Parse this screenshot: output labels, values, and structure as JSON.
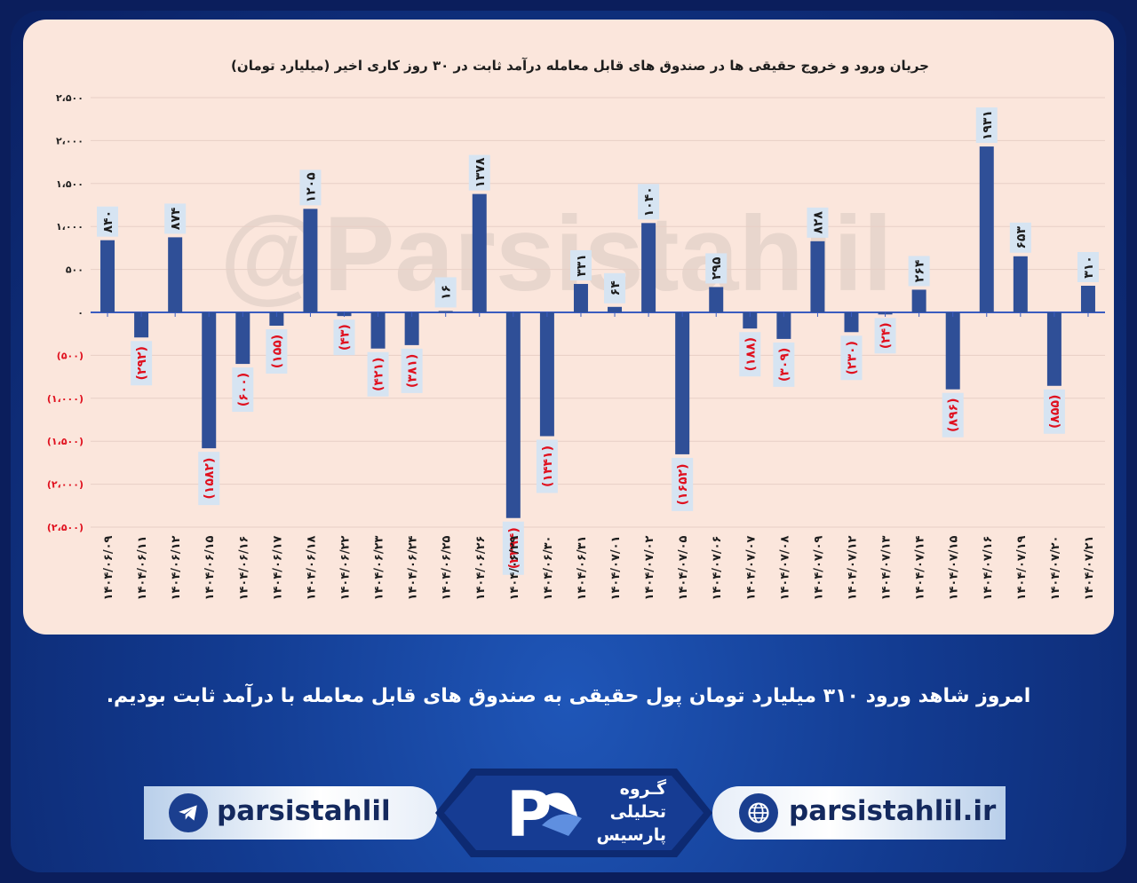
{
  "chart_data": {
    "type": "bar",
    "title": "جریان ورود و خروج حقیقی ها در صندوق های قابل معامله درآمد ثابت در ۳۰ روز کاری اخیر (میلیارد تومان)",
    "watermark": "@Parsistahlil",
    "ylim": [
      -2500,
      2500
    ],
    "y_ticks": [
      {
        "value": 2500,
        "label": "۲،۵۰۰"
      },
      {
        "value": 2000,
        "label": "۲،۰۰۰"
      },
      {
        "value": 1500,
        "label": "۱،۵۰۰"
      },
      {
        "value": 1000,
        "label": "۱،۰۰۰"
      },
      {
        "value": 500,
        "label": "۵۰۰"
      },
      {
        "value": 0,
        "label": "۰"
      },
      {
        "value": -500,
        "label": "(۵۰۰)"
      },
      {
        "value": -1000,
        "label": "(۱،۰۰۰)"
      },
      {
        "value": -1500,
        "label": "(۱،۵۰۰)"
      },
      {
        "value": -2000,
        "label": "(۲،۰۰۰)"
      },
      {
        "value": -2500,
        "label": "(۲،۵۰۰)"
      }
    ],
    "grid": true,
    "bar_color": "#2f4f97",
    "negative_label_color": "#e0101e",
    "categories": [
      "۱۴۰۴/۰۶/۰۹",
      "۱۴۰۴/۰۶/۱۱",
      "۱۴۰۴/۰۶/۱۲",
      "۱۴۰۴/۰۶/۱۵",
      "۱۴۰۴/۰۶/۱۶",
      "۱۴۰۴/۰۶/۱۷",
      "۱۴۰۴/۰۶/۱۸",
      "۱۴۰۴/۰۶/۲۲",
      "۱۴۰۴/۰۶/۲۳",
      "۱۴۰۴/۰۶/۲۴",
      "۱۴۰۴/۰۶/۲۵",
      "۱۴۰۴/۰۶/۲۶",
      "۱۴۰۴/۰۶/۲۹",
      "۱۴۰۴/۰۶/۳۰",
      "۱۴۰۴/۰۶/۳۱",
      "۱۴۰۴/۰۷/۰۱",
      "۱۴۰۴/۰۷/۰۲",
      "۱۴۰۴/۰۷/۰۵",
      "۱۴۰۴/۰۷/۰۶",
      "۱۴۰۴/۰۷/۰۷",
      "۱۴۰۴/۰۷/۰۸",
      "۱۴۰۴/۰۷/۰۹",
      "۱۴۰۴/۰۷/۱۲",
      "۱۴۰۴/۰۷/۱۳",
      "۱۴۰۴/۰۷/۱۴",
      "۱۴۰۴/۰۷/۱۵",
      "۱۴۰۴/۰۷/۱۶",
      "۱۴۰۴/۰۷/۱۹",
      "۱۴۰۴/۰۷/۲۰",
      "۱۴۰۴/۰۷/۲۱"
    ],
    "values": [
      840,
      -292,
      874,
      -1582,
      -600,
      -155,
      1205,
      -43,
      -421,
      -381,
      16,
      1378,
      -2394,
      -1441,
      331,
      64,
      1040,
      -1652,
      295,
      -188,
      -309,
      828,
      -230,
      -24,
      264,
      -896,
      1931,
      653,
      -855,
      310
    ],
    "data_labels": [
      "۸۴۰",
      "(۲۹۲)",
      "۸۷۴",
      "(۱۵۸۲)",
      "(۶۰۰)",
      "(۱۵۵)",
      "۱۲۰۵",
      "(۴۳)",
      "(۴۲۱)",
      "(۳۸۱)",
      "۱۶",
      "۱۳۷۸",
      "(۲۳۹۴)",
      "(۱۴۴۱)",
      "۳۳۱",
      "۶۴",
      "۱۰۴۰",
      "(۱۶۵۲)",
      "۲۹۵",
      "(۱۸۸)",
      "(۳۰۹)",
      "۸۲۸",
      "(۲۳۰)",
      "(۲۴)",
      "۲۶۴",
      "(۸۹۶)",
      "۱۹۳۱",
      "۶۵۳",
      "(۸۵۵)",
      "۳۱۰"
    ]
  },
  "caption": "امروز شاهد ورود ۳۱۰ میلیارد تومان پول حقیقی به صندوق های قابل معامله با درآمد ثابت بودیم.",
  "footer": {
    "telegram_handle": "parsistahlil",
    "website": "parsistahlil.ir",
    "logo_line1": "گـروه",
    "logo_line2": "تحلیلی",
    "logo_line3": "پارسیس",
    "telegram_icon": "telegram-icon",
    "globe_icon": "globe-icon"
  }
}
